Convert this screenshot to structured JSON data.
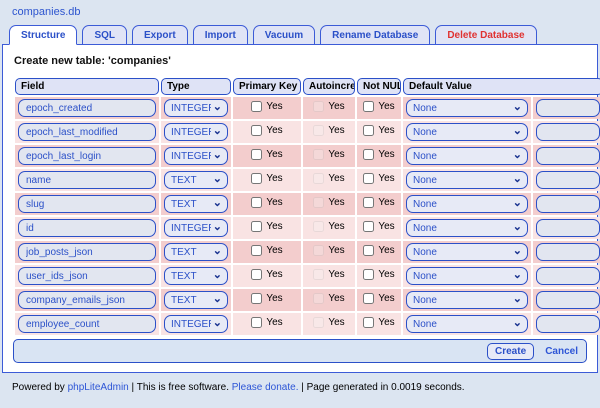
{
  "window": {
    "db_title": "companies.db"
  },
  "tabs": [
    {
      "label": "Structure"
    },
    {
      "label": "SQL"
    },
    {
      "label": "Export"
    },
    {
      "label": "Import"
    },
    {
      "label": "Vacuum"
    },
    {
      "label": "Rename Database"
    },
    {
      "label": "Delete Database"
    }
  ],
  "main": {
    "heading": "Create new table: 'companies'",
    "columns": {
      "field": "Field",
      "type": "Type",
      "primary_key": "Primary Key",
      "autoincrement": "Autoincrement",
      "not_null": "Not NULL",
      "default_value": "Default Value"
    },
    "checkbox_label": "Yes",
    "rows": [
      {
        "field": "epoch_created",
        "type": "INTEGER",
        "default": "None",
        "default_value": ""
      },
      {
        "field": "epoch_last_modified",
        "type": "INTEGER",
        "default": "None",
        "default_value": ""
      },
      {
        "field": "epoch_last_login",
        "type": "INTEGER",
        "default": "None",
        "default_value": ""
      },
      {
        "field": "name",
        "type": "TEXT",
        "default": "None",
        "default_value": ""
      },
      {
        "field": "slug",
        "type": "TEXT",
        "default": "None",
        "default_value": ""
      },
      {
        "field": "id",
        "type": "INTEGER",
        "default": "None",
        "default_value": ""
      },
      {
        "field": "job_posts_json",
        "type": "TEXT",
        "default": "None",
        "default_value": ""
      },
      {
        "field": "user_ids_json",
        "type": "TEXT",
        "default": "None",
        "default_value": ""
      },
      {
        "field": "company_emails_json",
        "type": "TEXT",
        "default": "None",
        "default_value": ""
      },
      {
        "field": "employee_count",
        "type": "INTEGER",
        "default": "None",
        "default_value": ""
      }
    ],
    "actions": {
      "create_label": "Create",
      "cancel_label": "Cancel"
    }
  },
  "footer": {
    "powered_prefix": "Powered by ",
    "app_link": "phpLiteAdmin",
    "free_text": " | This is free software. ",
    "donate_link": "Please donate.",
    "generated_text": " | Page generated in 0.0019 seconds."
  },
  "colors": {
    "accent_blue": "#2b50c8",
    "tab_border_blue": "#3c5bd7",
    "danger_red": "#e03232",
    "page_background": "#dce5f1",
    "row_dark_pink": "#f3cdcd",
    "row_light_pink": "#f9e3e3",
    "header_pill": "#dfe3f6",
    "action_bar": "#d9e4f3"
  }
}
